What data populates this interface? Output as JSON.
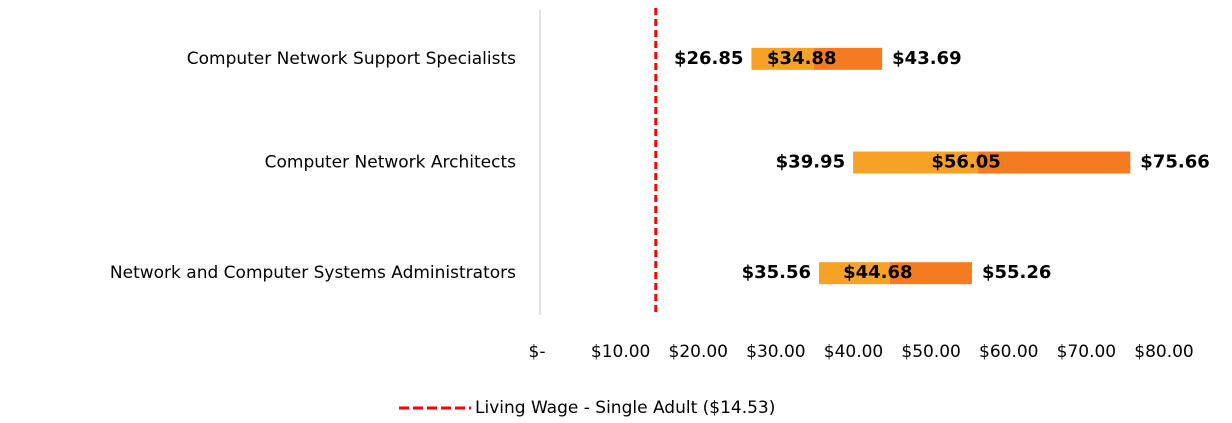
{
  "chart_data": {
    "type": "bar",
    "orientation": "horizontal",
    "stacked_range": true,
    "categories": [
      "Computer Network Support Specialists",
      "Computer Network Architects",
      "Network and Computer Systems Administrators"
    ],
    "series": [
      {
        "values": [
          26.85,
          39.95,
          35.56
        ],
        "value_labels": [
          "$26.85",
          "$39.95",
          "$35.56"
        ]
      },
      {
        "color": "#f7a127",
        "values": [
          34.88,
          56.05,
          44.68
        ],
        "value_labels": [
          "$34.88",
          "$56.05",
          "$44.68"
        ]
      },
      {
        "color": "#f47b20",
        "values": [
          43.69,
          75.66,
          55.26
        ],
        "value_labels": [
          "$43.69",
          "$75.66",
          "$55.26"
        ]
      }
    ],
    "xlim": [
      0,
      80
    ],
    "xticks": [
      {
        "value": 0,
        "label": "$-"
      },
      {
        "value": 10,
        "label": "$10.00"
      },
      {
        "value": 20,
        "label": "$20.00"
      },
      {
        "value": 30,
        "label": "$30.00"
      },
      {
        "value": 40,
        "label": "$40.00"
      },
      {
        "value": 50,
        "label": "$50.00"
      },
      {
        "value": 60,
        "label": "$60.00"
      },
      {
        "value": 70,
        "label": "$70.00"
      },
      {
        "value": 80,
        "label": "$80.00"
      }
    ],
    "reference_line": {
      "name": "Living Wage - Single Adult ($14.53)",
      "value": 14.53,
      "color": "#ff0000"
    },
    "legend": "bottom"
  }
}
